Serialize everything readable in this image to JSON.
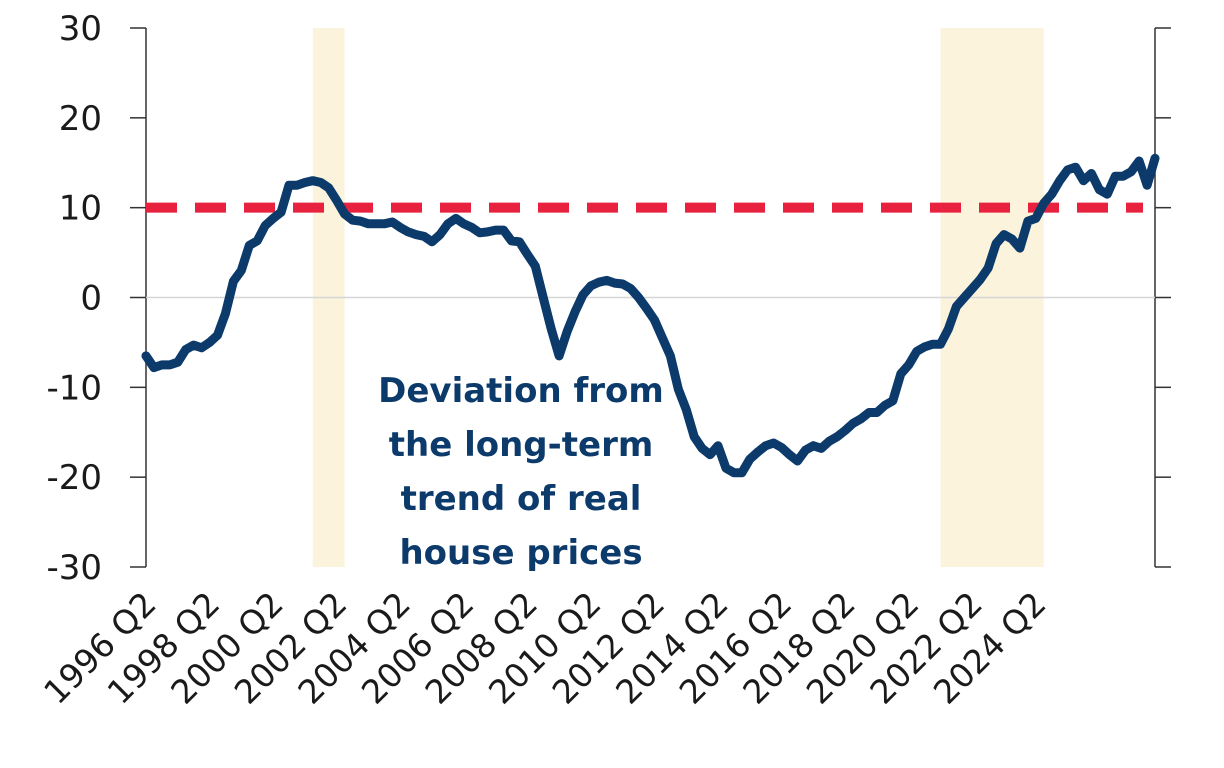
{
  "chart_data": {
    "type": "line",
    "title": "",
    "xlabel": "",
    "ylabel": "",
    "ylim": [
      -30,
      30
    ],
    "y_ticks": [
      30,
      20,
      10,
      0,
      -10,
      -20,
      -30
    ],
    "y_tick_labels": [
      "30",
      "20",
      "10",
      "0",
      "-10",
      "-20",
      "-30"
    ],
    "x_tick_labels": [
      "1996 Q2",
      "1998 Q2",
      "2000 Q2",
      "2002 Q2",
      "2004 Q2",
      "2006 Q2",
      "2008 Q2",
      "2010 Q2",
      "2012 Q2",
      "2014 Q2",
      "2016 Q2",
      "2018 Q2",
      "2020 Q2",
      "2022 Q2",
      "2024 Q2"
    ],
    "x_start_year": 1996,
    "x_start_quarter": 2,
    "shaded_periods": [
      {
        "start": "2001 Q3",
        "end": "2002 Q3"
      },
      {
        "start": "2021 Q2",
        "end": "2024 Q3"
      }
    ],
    "threshold": {
      "value": 10,
      "color": "#e8213f",
      "style": "dashed"
    },
    "annotation": {
      "lines": [
        "Deviation from",
        "the long-term",
        "trend of real",
        "house prices"
      ]
    },
    "colors": {
      "line": "#0b3a6b",
      "shade": "#fbf3dc",
      "threshold": "#e8213f"
    },
    "series": [
      {
        "values": [
          -6.5,
          -7.8,
          -7.5,
          -7.5,
          -7.2,
          -5.8,
          -5.3,
          -5.6,
          -5.0,
          -4.2,
          -1.8,
          1.8,
          3.0,
          5.8,
          6.3,
          8.0,
          8.8,
          9.5,
          12.5,
          12.5,
          12.8,
          13.0,
          12.8,
          12.2,
          10.8,
          9.3,
          8.6,
          8.5,
          8.2,
          8.2,
          8.2,
          8.4,
          7.8,
          7.3,
          7.0,
          6.8,
          6.2,
          7.0,
          8.2,
          8.8,
          8.2,
          7.8,
          7.2,
          7.3,
          7.5,
          7.5,
          6.3,
          6.2,
          4.8,
          3.5,
          0.0,
          -3.5,
          -6.5,
          -3.8,
          -1.6,
          0.3,
          1.3,
          1.7,
          1.9,
          1.6,
          1.5,
          1.0,
          0.0,
          -1.2,
          -2.5,
          -4.5,
          -6.5,
          -10.2,
          -12.5,
          -15.5,
          -16.8,
          -17.5,
          -16.5,
          -19.0,
          -19.5,
          -19.5,
          -18.0,
          -17.2,
          -16.5,
          -16.2,
          -16.7,
          -17.5,
          -18.2,
          -17.0,
          -16.5,
          -16.8,
          -16.0,
          -15.5,
          -14.8,
          -14.0,
          -13.5,
          -12.8,
          -12.8,
          -12.0,
          -11.5,
          -8.5,
          -7.5,
          -6.0,
          -5.5,
          -5.2,
          -5.2,
          -3.5,
          -1.0,
          0.0,
          1.0,
          2.0,
          3.3,
          6.0,
          7.0,
          6.5,
          5.5,
          8.5,
          8.8,
          10.5,
          11.5,
          13.0,
          14.2,
          14.5,
          13.0,
          13.8,
          12.0,
          11.5,
          13.5,
          13.5,
          14.0,
          15.2,
          12.5,
          15.5
        ]
      }
    ]
  }
}
